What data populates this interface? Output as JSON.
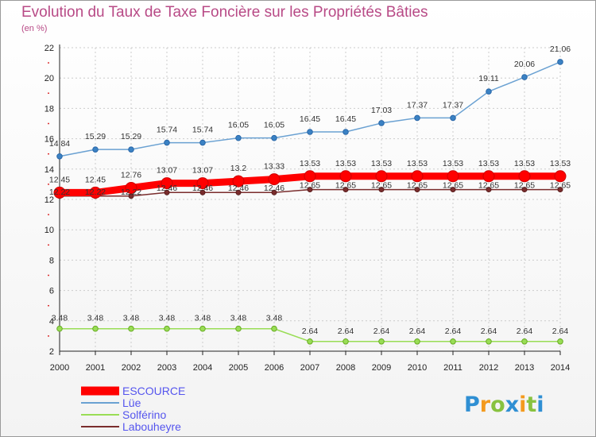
{
  "chart_data": {
    "type": "line",
    "title": "Evolution du Taux de Taxe Foncière sur les Propriétés Bâties",
    "ylabel": "(en %)",
    "xlabel": "",
    "x": [
      "2000",
      "2001",
      "2002",
      "2003",
      "2004",
      "2005",
      "2006",
      "2007",
      "2008",
      "2009",
      "2010",
      "2011",
      "2012",
      "2013",
      "2014"
    ],
    "ylim": [
      2,
      22
    ],
    "yticks": [
      "2",
      "4",
      "6",
      "8",
      "10",
      "12",
      "14",
      "16",
      "18",
      "20",
      "22"
    ],
    "grid": true,
    "legend_position": "bottom-left",
    "series": [
      {
        "name": "ESCOURCE",
        "color": "#ff0000",
        "values": [
          12.45,
          12.45,
          12.76,
          13.07,
          13.07,
          13.2,
          13.33,
          13.53,
          13.53,
          13.53,
          13.53,
          13.53,
          13.53,
          13.53,
          13.53
        ],
        "labels": [
          "12.45",
          "12.45",
          "12.76",
          "13.07",
          "13.07",
          "13.2",
          "13.33",
          "13.53",
          "13.53",
          "13.53",
          "13.53",
          "13.53",
          "13.53",
          "13.53",
          "13.53"
        ]
      },
      {
        "name": "Lüe",
        "color": "#6aa1d2",
        "values": [
          14.84,
          15.29,
          15.29,
          15.74,
          15.74,
          16.05,
          16.05,
          16.45,
          16.45,
          17.03,
          17.37,
          17.37,
          19.11,
          20.06,
          21.06
        ],
        "labels": [
          "14.84",
          "15.29",
          "15.29",
          "15.74",
          "15.74",
          "16.05",
          "16.05",
          "16.45",
          "16.45",
          "17.03",
          "17.37",
          "17.37",
          "19.11",
          "20.06",
          "21.06"
        ]
      },
      {
        "name": "Solférino",
        "color": "#99dd55",
        "values": [
          3.48,
          3.48,
          3.48,
          3.48,
          3.48,
          3.48,
          3.48,
          2.64,
          2.64,
          2.64,
          2.64,
          2.64,
          2.64,
          2.64,
          2.64
        ],
        "labels": [
          "3.48",
          "3.48",
          "3.48",
          "3.48",
          "3.48",
          "3.48",
          "3.48",
          "2.64",
          "2.64",
          "2.64",
          "2.64",
          "2.64",
          "2.64",
          "2.64",
          "2.64"
        ]
      },
      {
        "name": "Labouheyre",
        "color": "#7a2d2d",
        "values": [
          12.22,
          12.22,
          12.22,
          12.46,
          12.46,
          12.46,
          12.46,
          12.65,
          12.65,
          12.65,
          12.65,
          12.65,
          12.65,
          12.65,
          12.65
        ],
        "labels": [
          "12.22",
          "12.22",
          "12.22",
          "12.46",
          "12.46",
          "12.46",
          "12.46",
          "12.65",
          "12.65",
          "12.65",
          "12.65",
          "12.65",
          "12.65",
          "12.65",
          "12.65"
        ]
      }
    ]
  },
  "colors": {
    "title": "#b84a86",
    "legend_text": "#5555ee",
    "axis": "#222222",
    "grid": "#cccccc"
  },
  "logo": {
    "text": "Proxiti"
  }
}
